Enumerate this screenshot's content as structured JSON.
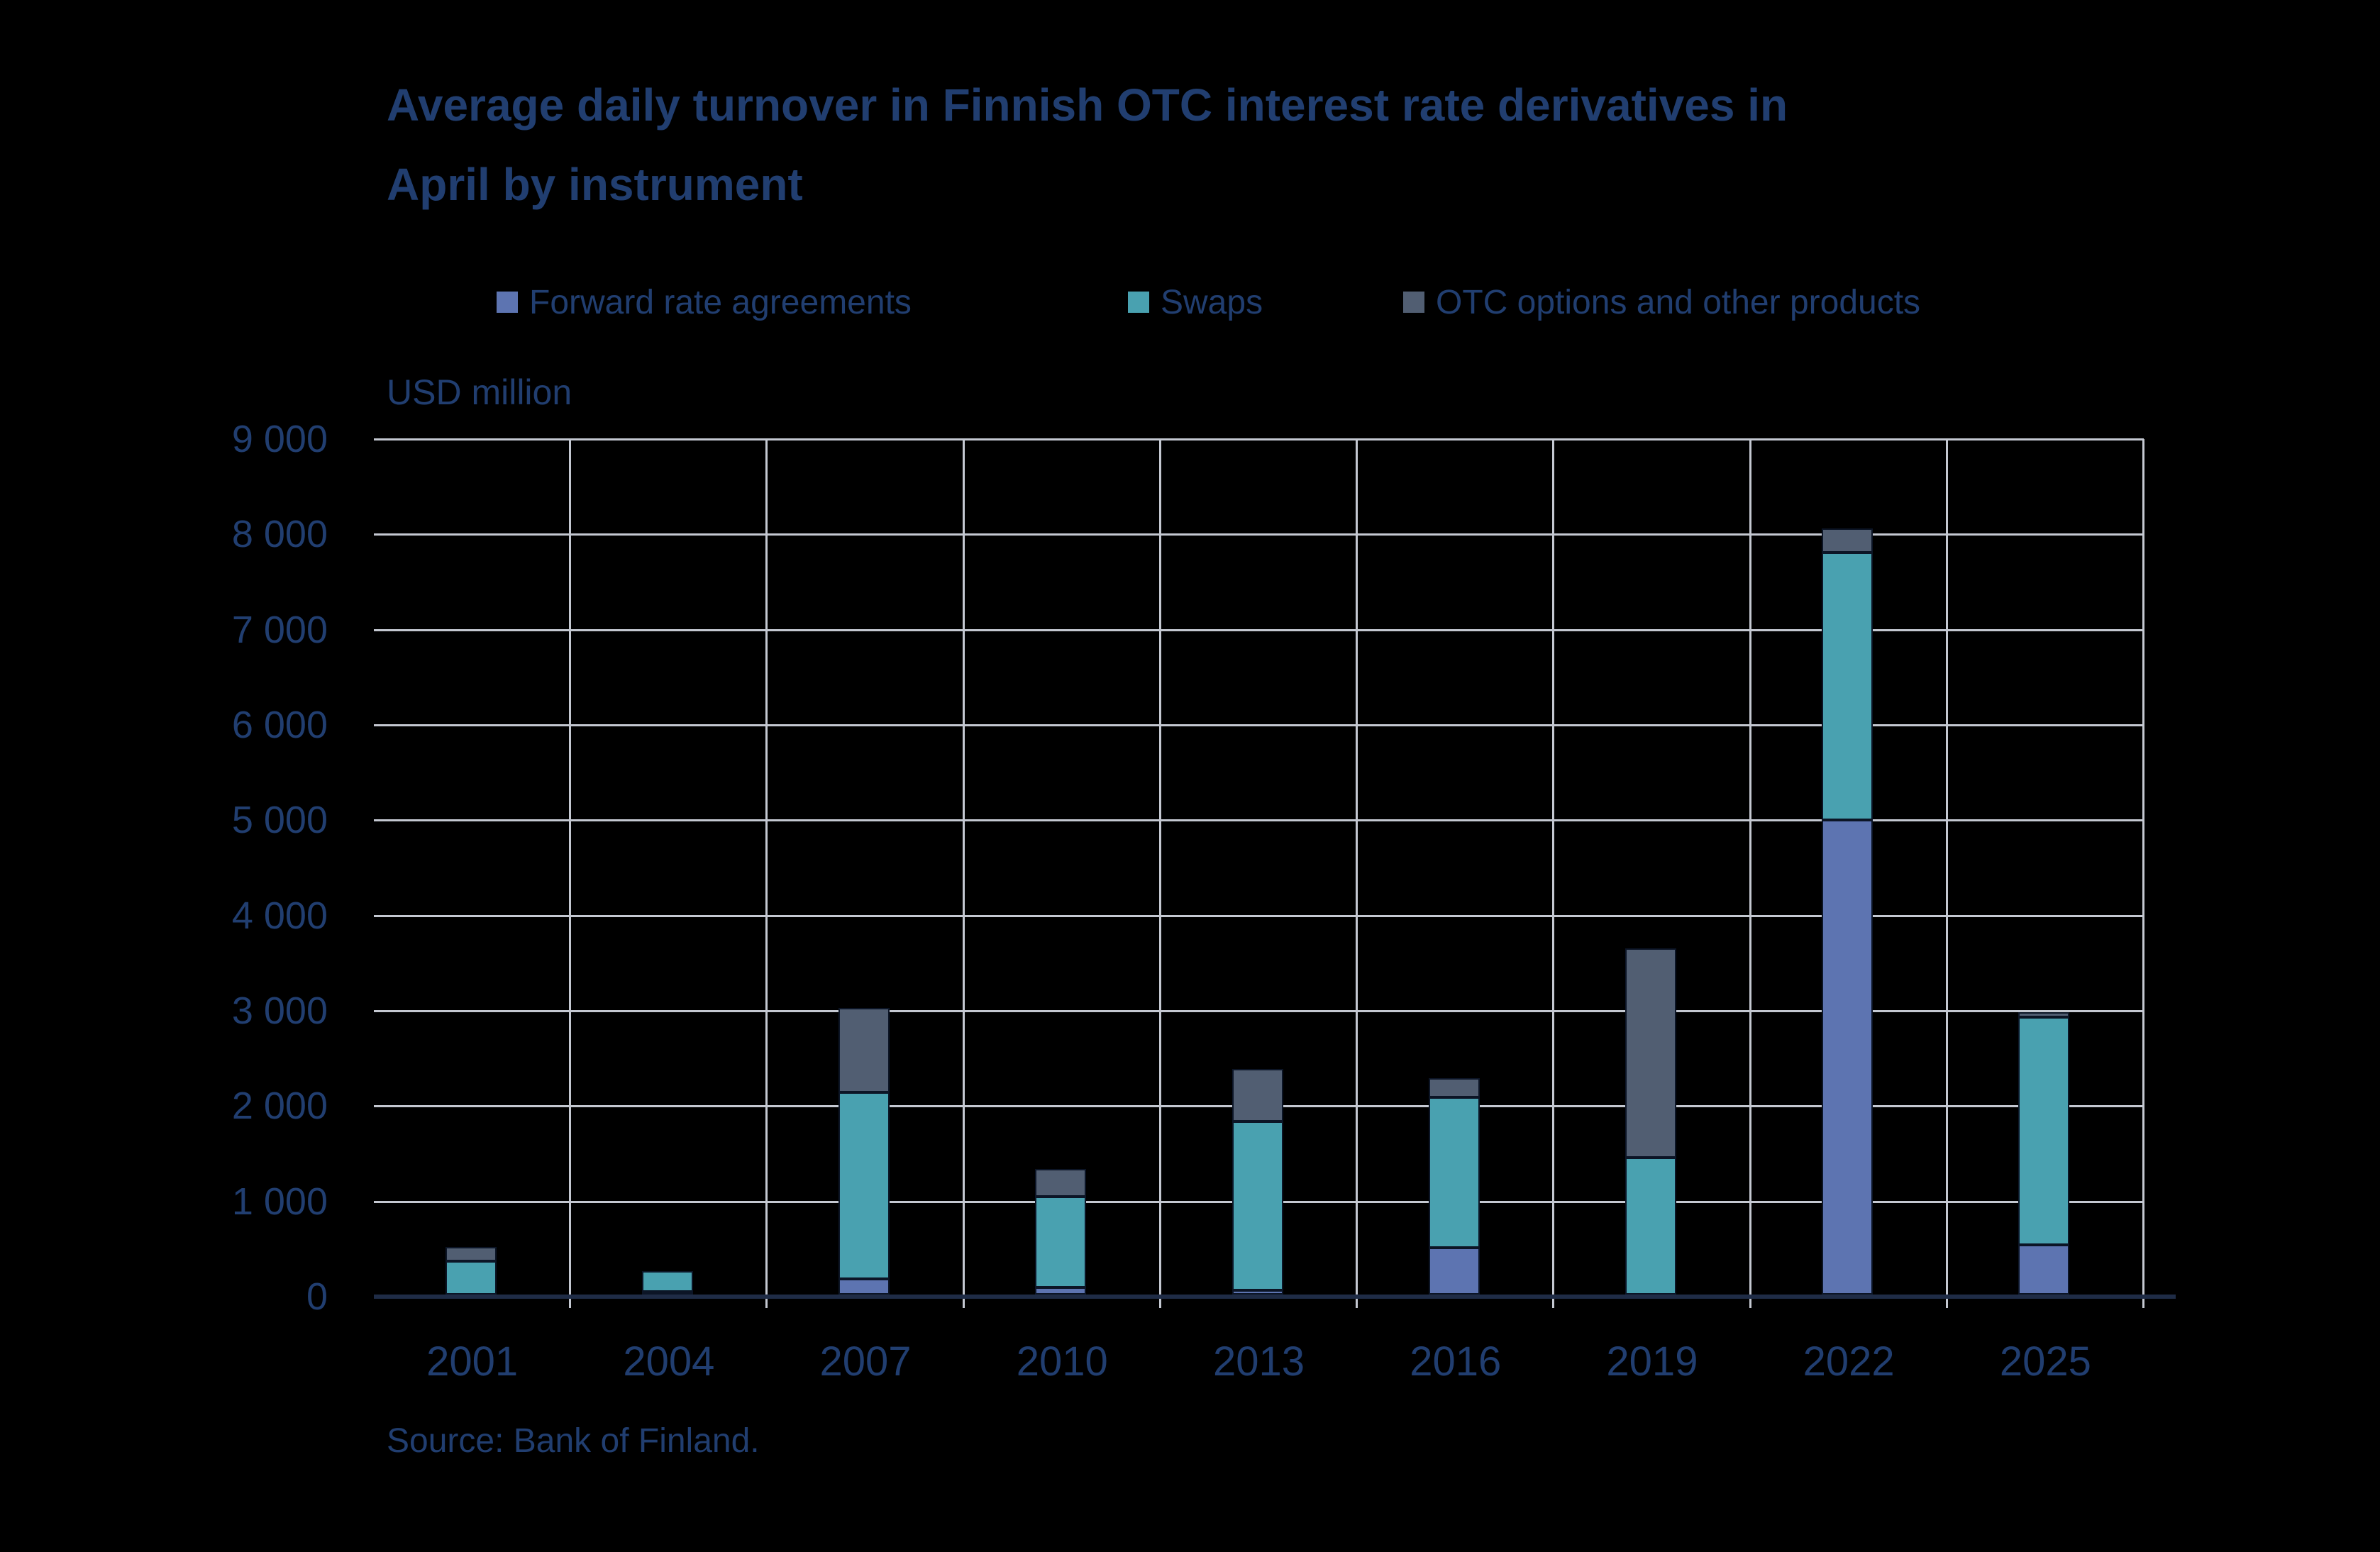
{
  "title_lines": [
    "Average daily turnover in Finnish OTC interest rate derivatives in",
    "April by instrument"
  ],
  "unit_label": "USD million",
  "source": "Source: Bank of Finland.",
  "legend": [
    {
      "label": "Forward rate agreements",
      "color": "#5d74b1"
    },
    {
      "label": "Swaps",
      "color": "#49a1b0"
    },
    {
      "label": "OTC options and other products",
      "color": "#515e72"
    }
  ],
  "y_axis": {
    "tick_labels": [
      "9 000",
      "8 000",
      "7 000",
      "6 000",
      "5 000",
      "4 000",
      "3 000",
      "2 000",
      "1 000",
      "0"
    ],
    "min": 0,
    "max": 9000,
    "step": 1000
  },
  "chart_data": {
    "type": "bar",
    "stacked": true,
    "title": "Average daily turnover in Finnish OTC interest rate derivatives in April by instrument",
    "ylabel": "USD million",
    "ylim": [
      0,
      9000
    ],
    "grid": true,
    "legend_position": "top",
    "categories": [
      "2001",
      "2004",
      "2007",
      "2010",
      "2013",
      "2016",
      "2019",
      "2022",
      "2025"
    ],
    "series": [
      {
        "name": "Forward rate agreements",
        "color": "#5d74b1",
        "values": [
          0,
          30,
          165,
          75,
          45,
          490,
          0,
          4980,
          520
        ]
      },
      {
        "name": "Swaps",
        "color": "#49a1b0",
        "values": [
          350,
          215,
          1955,
          955,
          1775,
          1580,
          1440,
          2810,
          2390
        ]
      },
      {
        "name": "OTC options and other products",
        "color": "#515e72",
        "values": [
          150,
          0,
          890,
          290,
          545,
          200,
          2190,
          250,
          50
        ]
      }
    ],
    "totals": [
      500,
      245,
      3010,
      1320,
      2365,
      2270,
      3630,
      8040,
      2960
    ]
  },
  "colors": {
    "background": "#000000",
    "text": "#213e70",
    "gridline": "#c4c8d1",
    "axis_line": "#1f2c46",
    "segment_border": "#0c1526"
  }
}
